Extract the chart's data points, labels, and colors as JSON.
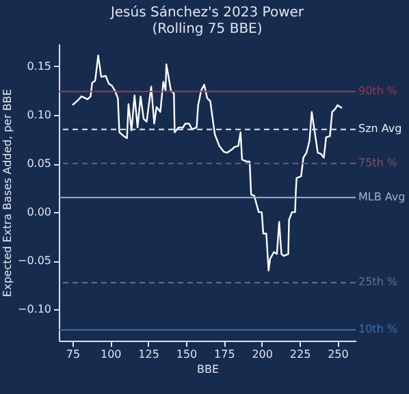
{
  "chart_data": {
    "type": "line",
    "title": "Jesús Sánchez's 2023 Power",
    "subtitle": "(Rolling 75 BBE)",
    "xlabel": "BBE",
    "ylabel": "Expected Extra Bases Added, per BBE",
    "x": [
      75,
      78,
      81,
      85,
      87,
      88,
      90,
      92,
      94,
      97,
      99,
      101,
      103,
      105,
      106,
      109,
      111,
      112,
      114,
      116,
      118,
      120,
      122,
      124,
      127,
      129,
      130.5,
      133,
      135,
      136.5,
      137,
      140,
      142,
      142.5,
      145,
      148,
      149.5,
      152,
      154,
      157,
      158,
      160,
      162,
      164,
      166,
      169,
      172,
      175,
      177,
      180,
      182,
      184.5,
      186,
      187,
      190,
      192,
      193,
      195,
      198,
      200,
      201,
      203,
      204.5,
      205.5,
      208,
      210,
      211.5,
      213,
      214.5,
      217.5,
      218,
      220,
      222,
      222.5,
      223,
      226,
      227.5,
      229.5,
      231.5,
      233,
      235,
      237,
      239,
      241,
      242.5,
      245,
      246.5,
      248.5,
      250,
      253
    ],
    "series": [
      {
        "color": "#ffffff",
        "values": [
          0.11,
          0.114,
          0.119,
          0.116,
          0.119,
          0.133,
          0.135,
          0.161,
          0.139,
          0.14,
          0.132,
          0.13,
          0.125,
          0.117,
          0.082,
          0.078,
          0.076,
          0.111,
          0.084,
          0.12,
          0.087,
          0.119,
          0.096,
          0.093,
          0.129,
          0.091,
          0.108,
          0.103,
          0.134,
          0.125,
          0.152,
          0.125,
          0.122,
          0.082,
          0.087,
          0.087,
          0.091,
          0.091,
          0.085,
          0.087,
          0.11,
          0.125,
          0.131,
          0.117,
          0.114,
          0.08,
          0.068,
          0.062,
          0.061,
          0.064,
          0.067,
          0.068,
          0.082,
          0.054,
          0.052,
          0.052,
          0.018,
          0.017,
          0.0,
          0.0,
          -0.022,
          -0.022,
          -0.06,
          -0.048,
          -0.041,
          -0.043,
          -0.01,
          -0.043,
          -0.045,
          -0.043,
          -0.008,
          0.0,
          0.0,
          0.021,
          0.035,
          0.037,
          0.056,
          0.061,
          0.073,
          0.103,
          0.082,
          0.061,
          0.06,
          0.056,
          0.077,
          0.078,
          0.103,
          0.106,
          0.11,
          0.107
        ]
      }
    ],
    "xlim": [
      66,
      262
    ],
    "ylim": [
      -0.132,
      0.173
    ],
    "xticks": [
      75,
      100,
      125,
      150,
      175,
      200,
      225,
      250
    ],
    "yticks": [
      {
        "value": -0.1,
        "label": "−0.10"
      },
      {
        "value": -0.05,
        "label": "−0.05"
      },
      {
        "value": 0,
        "label": "0.00"
      },
      {
        "value": 0.05,
        "label": "0.05"
      },
      {
        "value": 0.1,
        "label": "0.10"
      },
      {
        "value": 0.15,
        "label": "0.15"
      }
    ],
    "ref_lines": [
      {
        "axis": "y",
        "value": 0.124,
        "label": "90th %",
        "color": "#9a3a4c",
        "line_style": "solid"
      },
      {
        "axis": "y",
        "value": 0.085,
        "label": "Szn Avg",
        "color": "#e8ecf2",
        "line_style": "dashed"
      },
      {
        "axis": "y",
        "value": 0.05,
        "label": "75th %",
        "color": "#7e5262",
        "line_style": "dashed"
      },
      {
        "axis": "y",
        "value": 0.015,
        "label": "MLB Avg",
        "color": "#a8b0c0",
        "line_style": "solid"
      },
      {
        "axis": "y",
        "value": -0.0725,
        "label": "25th %",
        "color": "#5f7396",
        "line_style": "dashed"
      },
      {
        "axis": "y",
        "value": -0.121,
        "label": "10th %",
        "color": "#3f6fae",
        "line_style": "solid"
      }
    ],
    "grid": false,
    "line_style": "solid",
    "marker": "none"
  }
}
